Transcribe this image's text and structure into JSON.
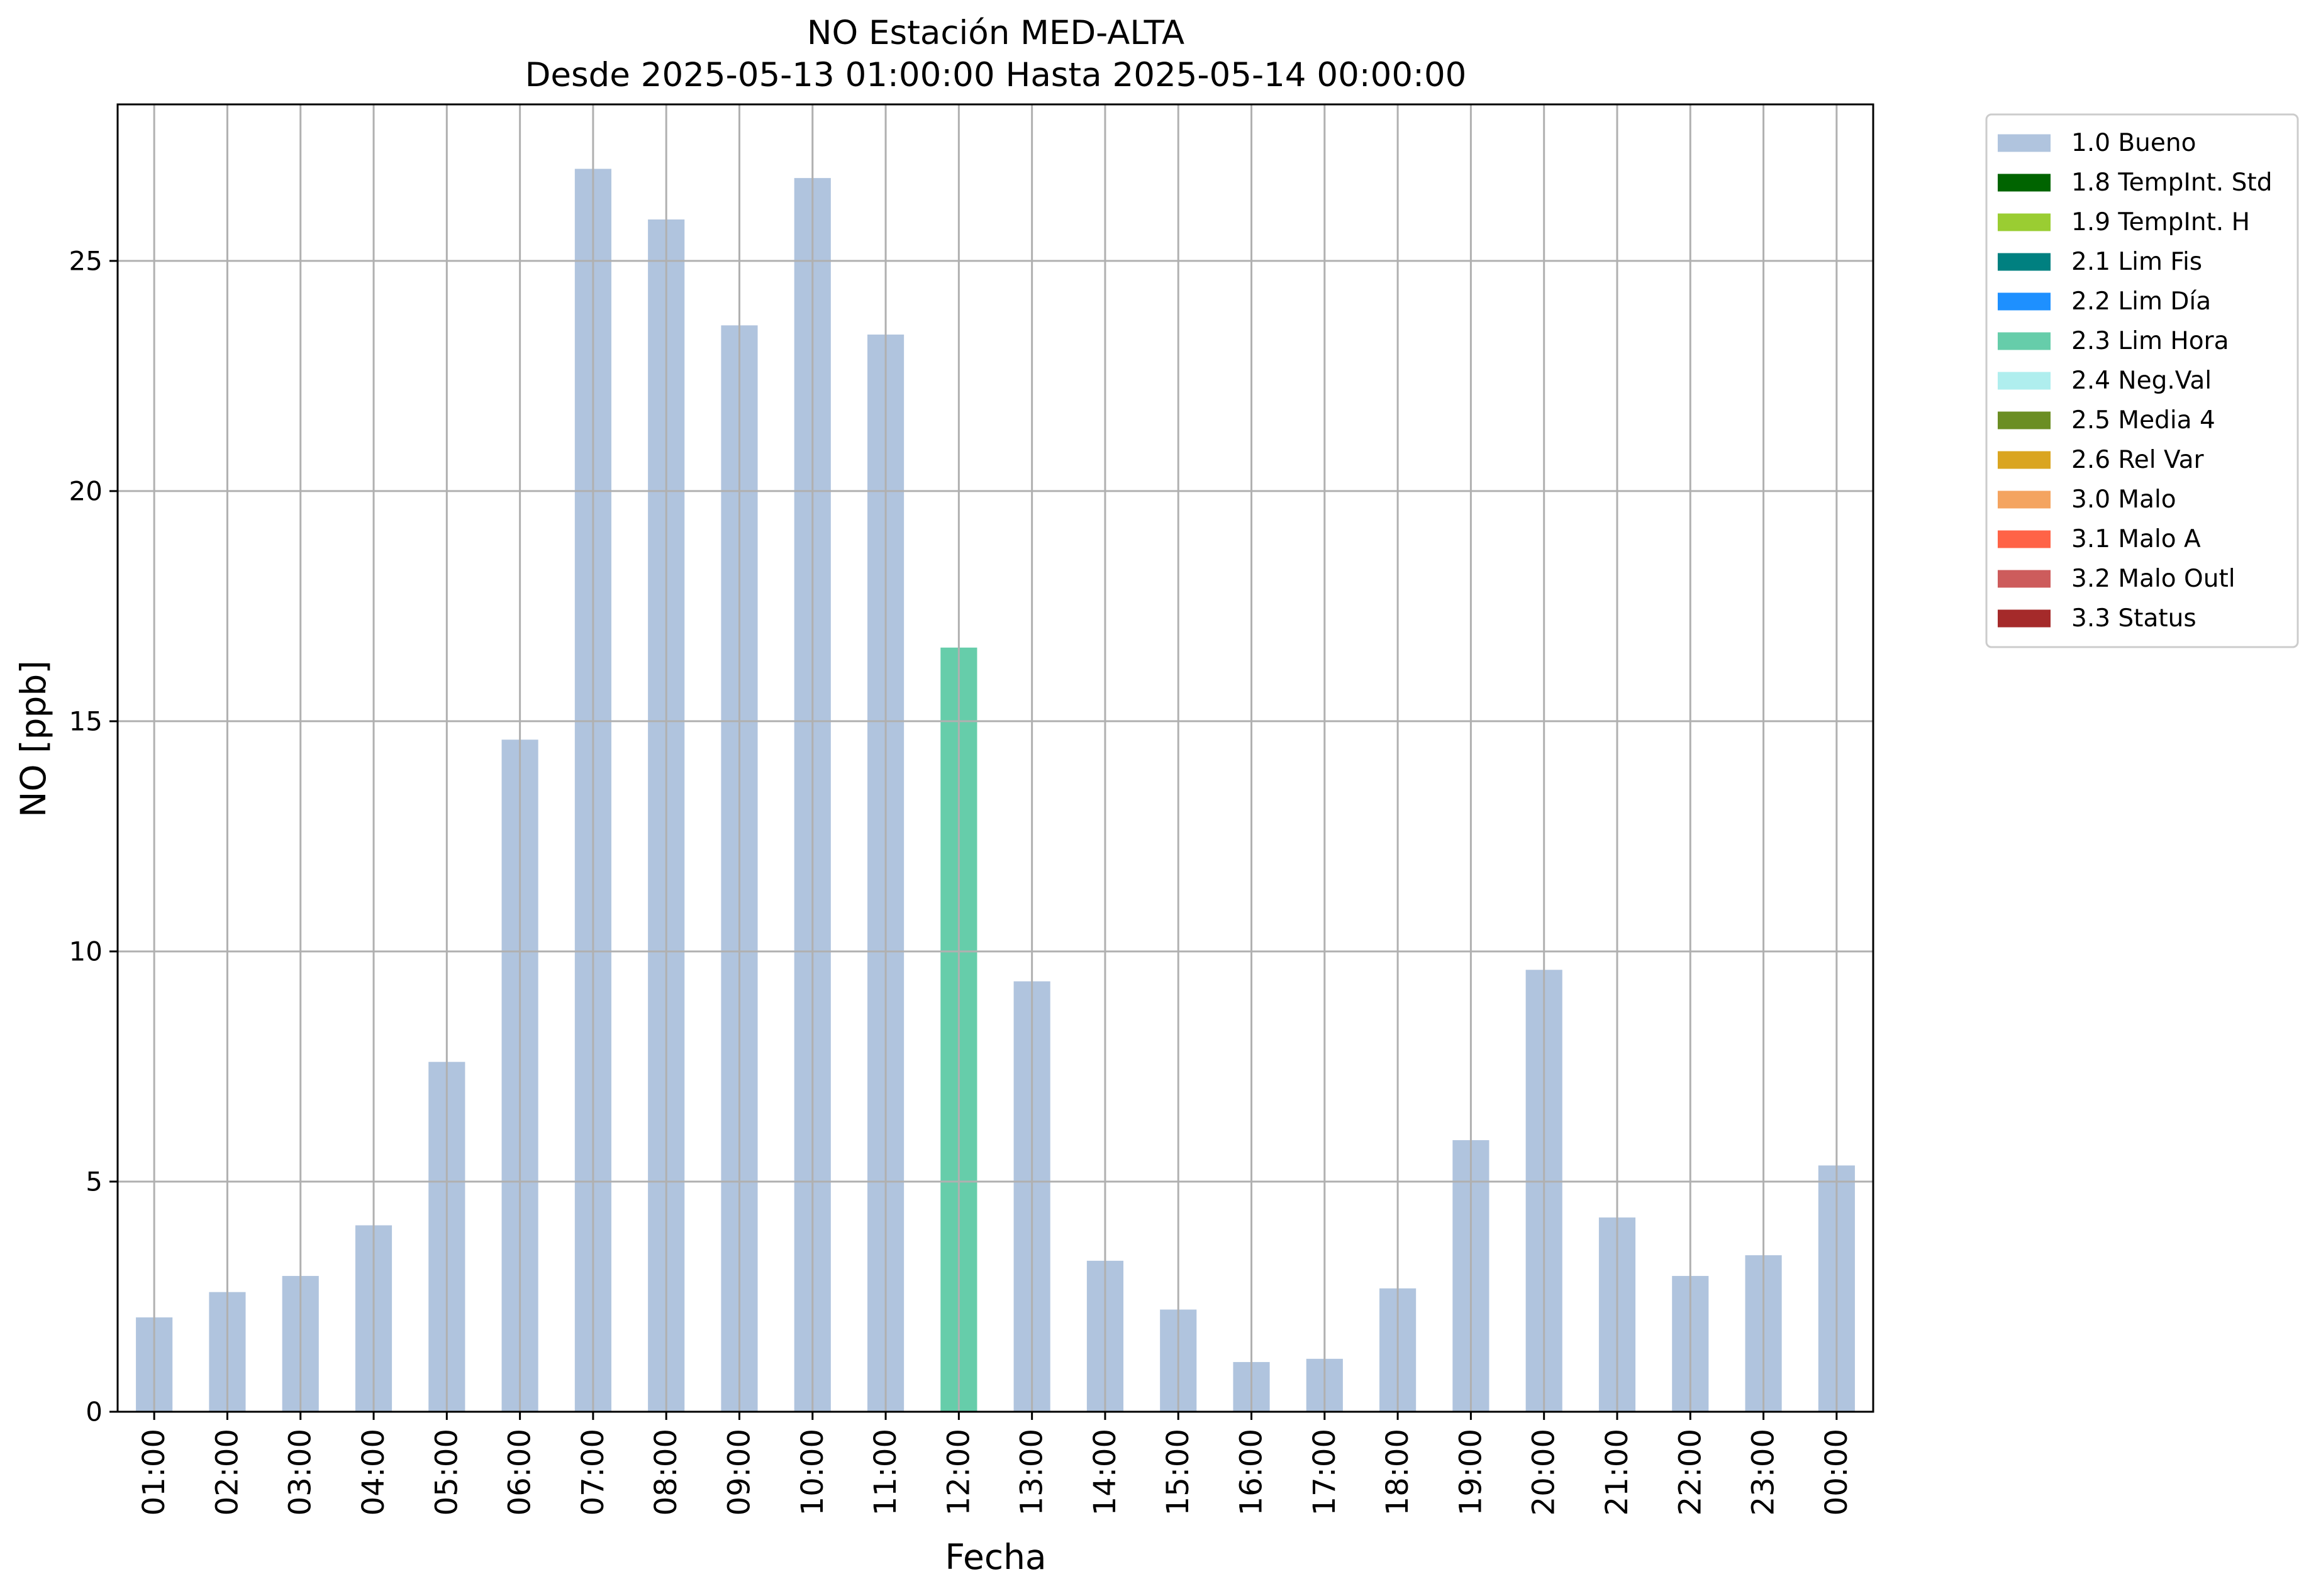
{
  "chart_data": {
    "type": "bar",
    "title": "NO Estación MED-ALTA",
    "subtitle": "Desde 2025-05-13 01:00:00 Hasta 2025-05-14 00:00:00",
    "xlabel": "Fecha",
    "ylabel": "NO [ppb]",
    "ylim": [
      0,
      28.4
    ],
    "yticks": [
      0,
      5,
      10,
      15,
      20,
      25
    ],
    "grid": true,
    "legend_position": "outside-top-right",
    "categories": [
      "01:00",
      "02:00",
      "03:00",
      "04:00",
      "05:00",
      "06:00",
      "07:00",
      "08:00",
      "09:00",
      "10:00",
      "11:00",
      "12:00",
      "13:00",
      "14:00",
      "15:00",
      "16:00",
      "17:00",
      "18:00",
      "19:00",
      "20:00",
      "21:00",
      "22:00",
      "23:00",
      "00:00"
    ],
    "values": [
      2.05,
      2.6,
      2.95,
      4.05,
      7.6,
      14.6,
      27.0,
      25.9,
      23.6,
      26.8,
      23.4,
      16.6,
      9.35,
      3.28,
      2.22,
      1.08,
      1.15,
      2.68,
      5.9,
      9.6,
      4.22,
      2.95,
      3.4,
      5.35
    ],
    "flags": [
      "1.0 Bueno",
      "1.0 Bueno",
      "1.0 Bueno",
      "1.0 Bueno",
      "1.0 Bueno",
      "1.0 Bueno",
      "1.0 Bueno",
      "1.0 Bueno",
      "1.0 Bueno",
      "1.0 Bueno",
      "1.0 Bueno",
      "2.3 Lim Hora",
      "1.0 Bueno",
      "1.0 Bueno",
      "1.0 Bueno",
      "1.0 Bueno",
      "1.0 Bueno",
      "1.0 Bueno",
      "1.0 Bueno",
      "1.0 Bueno",
      "1.0 Bueno",
      "1.0 Bueno",
      "1.0 Bueno",
      "1.0 Bueno"
    ],
    "legend": [
      {
        "name": "1.0 Bueno",
        "color": "#b0c4de"
      },
      {
        "name": "1.8 TempInt. Std",
        "color": "#006400"
      },
      {
        "name": "1.9 TempInt. H",
        "color": "#9acd32"
      },
      {
        "name": "2.1 Lim Fis",
        "color": "#008080"
      },
      {
        "name": "2.2 Lim Día",
        "color": "#1e90ff"
      },
      {
        "name": "2.3 Lim Hora",
        "color": "#66cdaa"
      },
      {
        "name": "2.4 Neg.Val",
        "color": "#afeeee"
      },
      {
        "name": "2.5 Media 4",
        "color": "#6b8e23"
      },
      {
        "name": "2.6 Rel Var",
        "color": "#daa520"
      },
      {
        "name": "3.0 Malo",
        "color": "#f4a460"
      },
      {
        "name": "3.1 Malo A",
        "color": "#ff6347"
      },
      {
        "name": "3.2 Malo Outl",
        "color": "#cd5c5c"
      },
      {
        "name": "3.3 Status",
        "color": "#a52a2a"
      }
    ]
  }
}
